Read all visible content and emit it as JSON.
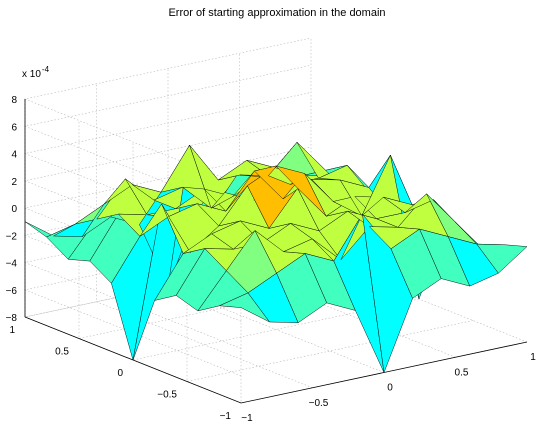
{
  "chart_data": {
    "type": "surface3d",
    "title": "Error of starting approximation in the domain",
    "z_multiplier": "x 10",
    "z_exponent": "-4",
    "x_ticks": [
      "-1",
      "-0.5",
      "0",
      "0.5",
      "1"
    ],
    "y_ticks": [
      "-1",
      "-0.5",
      "0",
      "0.5",
      "1"
    ],
    "z_ticks": [
      "-8",
      "-6",
      "-4",
      "-2",
      "0",
      "2",
      "4",
      "6",
      "8"
    ],
    "xlim": [
      -1,
      1
    ],
    "ylim": [
      -1,
      1
    ],
    "zlim": [
      -8,
      8
    ],
    "grid": true,
    "colormap": "jet",
    "grid_x": [
      -1,
      -0.8,
      -0.6,
      -0.4,
      -0.2,
      0,
      0.2,
      0.4,
      0.6,
      0.8,
      1
    ],
    "grid_y": [
      -1,
      -0.8,
      -0.6,
      -0.4,
      -0.2,
      0,
      0.2,
      0.4,
      0.6,
      0.8,
      1
    ],
    "z": [
      [
        -1.0,
        -2.5,
        -3.0,
        -2.0,
        -3.0,
        -8.0,
        -3.0,
        -2.0,
        -3.0,
        -2.5,
        -1.0
      ],
      [
        -1.5,
        -1.0,
        0.0,
        1.0,
        0.0,
        3.0,
        0.0,
        1.0,
        0.0,
        -1.0,
        -1.5
      ],
      [
        -2.5,
        0.0,
        2.5,
        0.5,
        1.0,
        -1.0,
        1.0,
        0.5,
        2.5,
        0.0,
        -2.5
      ],
      [
        -2.0,
        1.0,
        0.5,
        0.5,
        1.5,
        0.5,
        1.5,
        0.5,
        0.5,
        1.0,
        -2.0
      ],
      [
        -3.0,
        0.0,
        1.0,
        1.5,
        0.5,
        3.0,
        0.5,
        1.5,
        1.0,
        0.0,
        -3.0
      ],
      [
        -8.0,
        3.0,
        -1.0,
        0.5,
        3.0,
        4.0,
        3.0,
        0.5,
        -1.0,
        3.0,
        -8.0
      ],
      [
        -3.0,
        0.0,
        1.0,
        1.5,
        0.5,
        3.0,
        0.5,
        1.5,
        1.0,
        0.0,
        -3.0
      ],
      [
        -2.0,
        1.0,
        0.5,
        0.5,
        1.5,
        0.5,
        1.5,
        0.5,
        0.5,
        1.0,
        -2.0
      ],
      [
        -2.5,
        0.0,
        2.5,
        0.5,
        1.0,
        -1.0,
        1.0,
        0.5,
        2.5,
        0.0,
        -2.5
      ],
      [
        -1.5,
        -1.0,
        0.0,
        1.0,
        0.0,
        3.0,
        0.0,
        1.0,
        0.0,
        -1.0,
        -1.5
      ],
      [
        -1.0,
        -2.5,
        -3.0,
        -2.0,
        -3.0,
        -8.0,
        -3.0,
        -2.0,
        -3.0,
        -2.5,
        -1.0
      ]
    ]
  }
}
